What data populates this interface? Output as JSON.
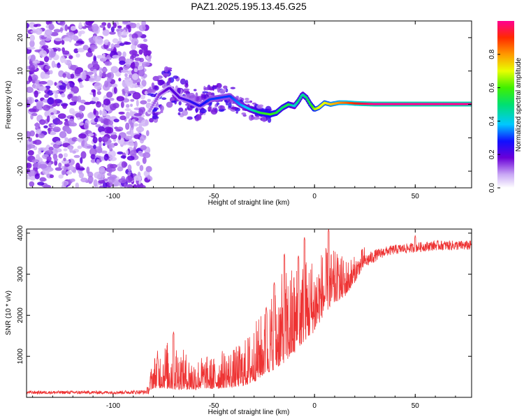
{
  "title": "PAZ1.2025.195.13.45.G25",
  "colors": {
    "snr_line": "#ee3333",
    "axes": "#000000",
    "background": "#ffffff"
  },
  "chart_data": [
    {
      "type": "heatmap",
      "name": "spectrogram",
      "xlabel": "Height of straight line (km)",
      "ylabel": "Frequency (Hz)",
      "xlim": [
        -143,
        78
      ],
      "ylim": [
        -25,
        25
      ],
      "xticks": [
        -100,
        -50,
        0,
        50
      ],
      "xtick_labels": [
        "-100",
        "-50",
        "0",
        "50"
      ],
      "yticks": [
        -20,
        -10,
        0,
        10,
        20
      ],
      "ytick_labels": [
        "-20",
        "-10",
        "0",
        "10",
        "20"
      ],
      "grid": false,
      "noise_region_km": [
        -143,
        -82
      ],
      "ridge": {
        "x": [
          -82,
          -77,
          -72,
          -67,
          -62,
          -57,
          -52,
          -47,
          -42,
          -37,
          -32,
          -27,
          -22,
          -19,
          -16,
          -13,
          -10,
          -8,
          -6,
          -4,
          -2,
          0,
          2,
          5,
          8,
          12,
          16,
          20,
          24,
          30,
          40,
          50,
          60,
          70,
          78
        ],
        "y": [
          -2,
          3,
          5,
          2,
          1,
          -0.5,
          1.5,
          2,
          2.5,
          0,
          -1.5,
          -2.5,
          -3,
          -2.5,
          -1,
          0,
          -0.5,
          1,
          3,
          2,
          0,
          -1.5,
          -1,
          0.5,
          0,
          0.5,
          0.5,
          0.3,
          0.2,
          0.1,
          0.1,
          0.1,
          0.1,
          0.1,
          0.1
        ],
        "amplitude": [
          0.1,
          0.15,
          0.2,
          0.2,
          0.25,
          0.25,
          0.3,
          0.3,
          0.3,
          0.35,
          0.4,
          0.55,
          0.6,
          0.55,
          0.5,
          0.55,
          0.4,
          0.5,
          0.45,
          0.5,
          0.55,
          0.65,
          0.7,
          0.7,
          0.75,
          0.8,
          0.85,
          0.9,
          0.95,
          1,
          1,
          1,
          1,
          1,
          1
        ]
      },
      "colorbar": {
        "label": "Normalized spectral amplitude",
        "range": [
          0,
          1
        ],
        "ticks": [
          0,
          0.2,
          0.4,
          0.6,
          0.8
        ],
        "tick_labels": [
          "0.0",
          "0.2",
          "0.4",
          "0.6",
          "0.8"
        ]
      }
    },
    {
      "type": "line",
      "name": "snr",
      "xlabel": "Height of straight line (km)",
      "ylabel": "SNR (10 * v/v)",
      "xlim": [
        -143,
        78
      ],
      "ylim": [
        0,
        4100
      ],
      "xticks": [
        -100,
        -50,
        0,
        50
      ],
      "xtick_labels": [
        "-100",
        "-50",
        "0",
        "50"
      ],
      "yticks": [
        1000,
        2000,
        3000,
        4000
      ],
      "ytick_labels": [
        "1000",
        "2000",
        "3000",
        "4000"
      ],
      "grid": false,
      "envelope": {
        "x": [
          -143,
          -120,
          -100,
          -84,
          -82,
          -80,
          -75,
          -70,
          -65,
          -60,
          -55,
          -50,
          -45,
          -40,
          -35,
          -30,
          -25,
          -20,
          -15,
          -10,
          -5,
          0,
          5,
          10,
          15,
          20,
          25,
          30,
          35,
          40,
          50,
          60,
          70,
          78
        ],
        "baseline": [
          120,
          120,
          120,
          130,
          200,
          350,
          400,
          380,
          350,
          300,
          350,
          320,
          380,
          400,
          450,
          600,
          800,
          1000,
          1200,
          1400,
          1700,
          1900,
          2300,
          2500,
          2600,
          2900,
          3300,
          3450,
          3550,
          3600,
          3650,
          3700,
          3700,
          3700
        ],
        "spread": [
          80,
          80,
          80,
          100,
          250,
          500,
          700,
          800,
          600,
          500,
          500,
          500,
          600,
          600,
          700,
          900,
          1000,
          1300,
          1400,
          1400,
          1300,
          1200,
          1000,
          800,
          600,
          400,
          300,
          250,
          200,
          200,
          200,
          200,
          200,
          200
        ]
      },
      "peaks": [
        {
          "x": -78,
          "y": 1000
        },
        {
          "x": -70,
          "y": 1600
        },
        {
          "x": -24,
          "y": 2200
        },
        {
          "x": -20,
          "y": 2800
        },
        {
          "x": -15,
          "y": 3500
        },
        {
          "x": -8,
          "y": 3450
        },
        {
          "x": -5,
          "y": 3900
        },
        {
          "x": 7,
          "y": 4100
        },
        {
          "x": 12,
          "y": 3000
        },
        {
          "x": 50,
          "y": 3950
        }
      ]
    }
  ]
}
